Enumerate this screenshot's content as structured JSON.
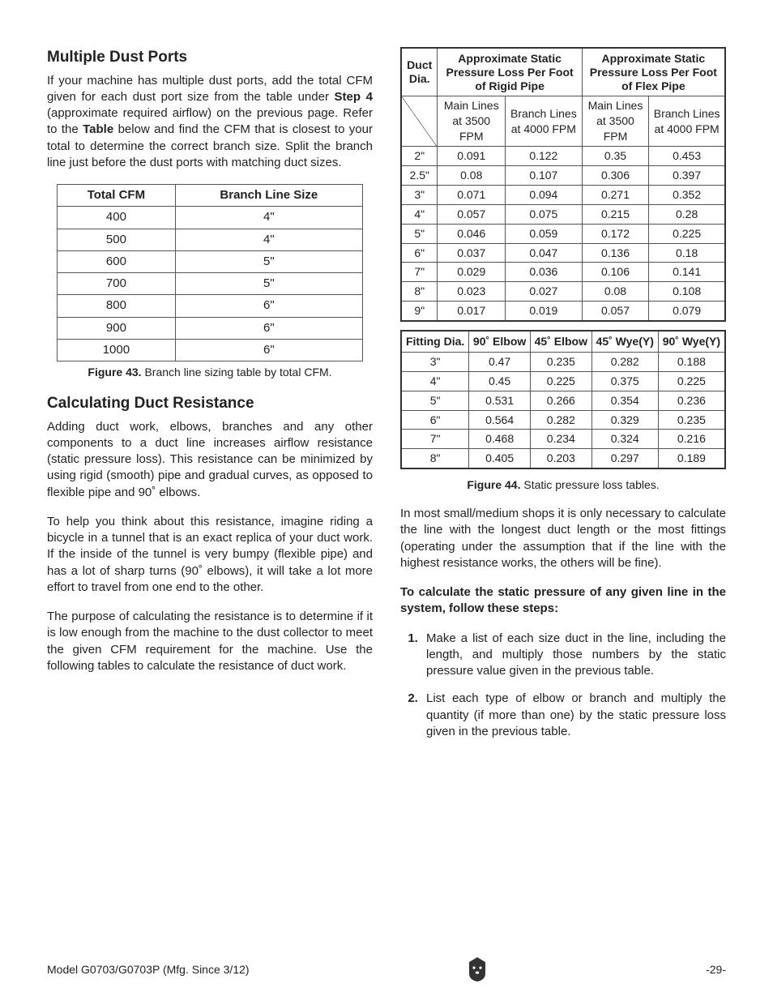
{
  "left": {
    "h1": "Multiple Dust Ports",
    "p1a": "If your machine has multiple dust ports, add the total CFM given for each dust port size from the table under ",
    "p1b": "Step 4",
    "p1c": " (approximate required airflow) on the previous page. Refer to the ",
    "p1d": "Table",
    "p1e": " below and find the CFM that is closest to your total to determine the correct branch size. Split the branch line just before the dust ports with matching duct sizes.",
    "t1": {
      "headers": [
        "Total CFM",
        "Branch Line Size"
      ],
      "rows": [
        [
          "400",
          "4\""
        ],
        [
          "500",
          "4\""
        ],
        [
          "600",
          "5\""
        ],
        [
          "700",
          "5\""
        ],
        [
          "800",
          "6\""
        ],
        [
          "900",
          "6\""
        ],
        [
          "1000",
          "6\""
        ]
      ]
    },
    "cap1": "Figure 43. Branch line sizing table by total CFM.",
    "h2": "Calculating Duct Resistance",
    "p2": "Adding duct work, elbows, branches and any other components to a duct line increases airflow resistance (static pressure loss). This resistance can be minimized by using rigid (smooth) pipe and gradual curves, as opposed to flexible pipe and 90˚ elbows.",
    "p3": "To help you think about this resistance, imagine riding a bicycle in a tunnel that is an exact replica of your duct work. If the inside of the tunnel is very bumpy (flexible pipe) and has a lot of sharp turns (90˚ elbows), it will take a lot more effort to travel from one end to the other.",
    "p4": "The purpose of calculating the resistance is to determine if it is low enough from the machine to the dust collector to meet the given CFM requirement for the machine. Use the following tables to calculate the resistance of duct work."
  },
  "right": {
    "t2a": {
      "grouphdr": [
        "Duct Dia.",
        "Approximate Static Pressure Loss Per Foot of Rigid Pipe",
        "Approximate Static Pressure Loss Per Foot of Flex Pipe"
      ],
      "subhdr": [
        "Main Lines at 3500 FPM",
        "Branch Lines at 4000 FPM",
        "Main Lines at 3500 FPM",
        "Branch Lines at 4000 FPM"
      ],
      "rows": [
        [
          "2\"",
          "0.091",
          "0.122",
          "0.35",
          "0.453"
        ],
        [
          "2.5\"",
          "0.08",
          "0.107",
          "0.306",
          "0.397"
        ],
        [
          "3\"",
          "0.071",
          "0.094",
          "0.271",
          "0.352"
        ],
        [
          "4\"",
          "0.057",
          "0.075",
          "0.215",
          "0.28"
        ],
        [
          "5\"",
          "0.046",
          "0.059",
          "0.172",
          "0.225"
        ],
        [
          "6\"",
          "0.037",
          "0.047",
          "0.136",
          "0.18"
        ],
        [
          "7\"",
          "0.029",
          "0.036",
          "0.106",
          "0.141"
        ],
        [
          "8\"",
          "0.023",
          "0.027",
          "0.08",
          "0.108"
        ],
        [
          "9\"",
          "0.017",
          "0.019",
          "0.057",
          "0.079"
        ]
      ]
    },
    "t2b": {
      "hdr": [
        "Fitting Dia.",
        "90˚ Elbow",
        "45˚ Elbow",
        "45˚ Wye(Y)",
        "90˚ Wye(Y)"
      ],
      "rows": [
        [
          "3\"",
          "0.47",
          "0.235",
          "0.282",
          "0.188"
        ],
        [
          "4\"",
          "0.45",
          "0.225",
          "0.375",
          "0.225"
        ],
        [
          "5\"",
          "0.531",
          "0.266",
          "0.354",
          "0.236"
        ],
        [
          "6\"",
          "0.564",
          "0.282",
          "0.329",
          "0.235"
        ],
        [
          "7\"",
          "0.468",
          "0.234",
          "0.324",
          "0.216"
        ],
        [
          "8\"",
          "0.405",
          "0.203",
          "0.297",
          "0.189"
        ]
      ]
    },
    "cap2": "Figure 44. Static pressure loss tables.",
    "p5": "In most small/medium shops it is only necessary to calculate the line with the longest duct length or the most fittings (operating under the assumption that if the line with the highest resistance works, the others will be fine).",
    "p6": "To calculate the static pressure of any given line in the system, follow these steps:",
    "li1": "Make a list of each size duct in the line, including the length, and multiply those numbers by the static pressure value given in the previous table.",
    "li2": "List each type of elbow or branch and multiply the quantity (if more than one) by the static pressure loss given in the previous table."
  },
  "footer": {
    "left": "Model G0703/G0703P (Mfg. Since 3/12)",
    "right": "-29-"
  }
}
